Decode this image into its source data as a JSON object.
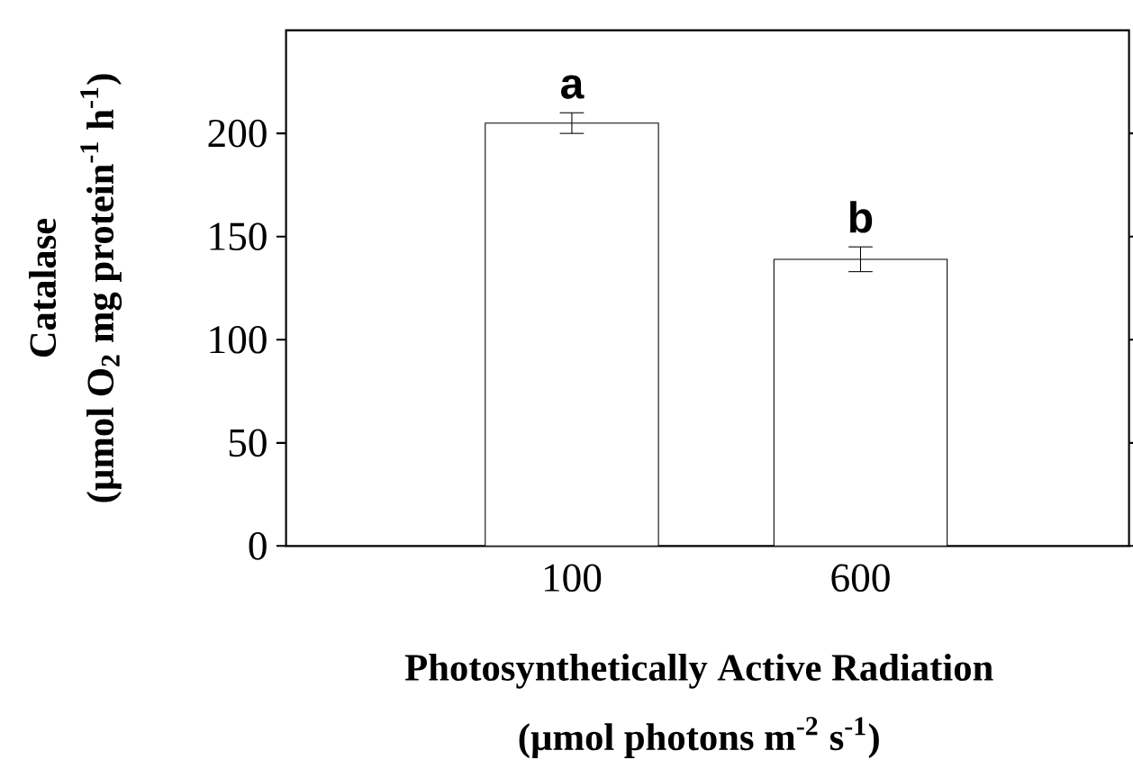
{
  "chart_data": {
    "type": "bar",
    "xlabel": "Photosynthetically Active Radiation (µmol photons m$^{-2}$ s$^{-1}$)",
    "ylabel": "Catalase (µmol O$_{2}$ mg protein$^{-1}$ h$^{-1}$)",
    "categories": [
      "100",
      "600"
    ],
    "values": [
      205,
      139
    ],
    "errors": [
      5,
      6
    ],
    "color": "#ffffff",
    "ylim": [
      0,
      250
    ],
    "yticks": [
      0,
      50,
      100,
      150,
      200
    ],
    "grid": false,
    "annotations": [
      "a",
      "b"
    ]
  }
}
